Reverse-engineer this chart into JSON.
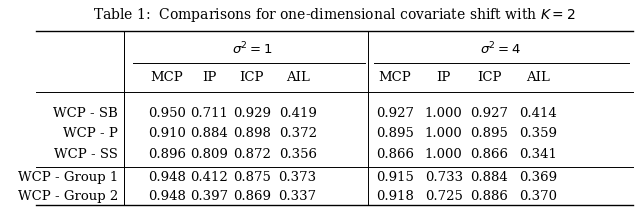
{
  "title": "Table 1:  Comparisons for one-dimensional covariate shift with $K = 2$",
  "sigma1_label": "$\\sigma^2 = 1$",
  "sigma4_label": "$\\sigma^2 = 4$",
  "col_headers": [
    "MCP",
    "IP",
    "ICP",
    "AIL",
    "MCP",
    "IP",
    "ICP",
    "AIL"
  ],
  "row_labels": [
    "WCP - SB",
    "WCP - P",
    "WCP - SS",
    "",
    "WCP - Group 1",
    "WCP - Group 2"
  ],
  "data": [
    [
      "0.950",
      "0.711",
      "0.929",
      "0.419",
      "0.927",
      "1.000",
      "0.927",
      "0.414"
    ],
    [
      "0.910",
      "0.884",
      "0.898",
      "0.372",
      "0.895",
      "1.000",
      "0.895",
      "0.359"
    ],
    [
      "0.896",
      "0.809",
      "0.872",
      "0.356",
      "0.866",
      "1.000",
      "0.866",
      "0.341"
    ],
    null,
    [
      "0.948",
      "0.412",
      "0.875",
      "0.373",
      "0.915",
      "0.733",
      "0.884",
      "0.369"
    ],
    [
      "0.948",
      "0.397",
      "0.869",
      "0.337",
      "0.918",
      "0.725",
      "0.886",
      "0.370"
    ]
  ],
  "bg_color": "#ffffff",
  "font_size": 9.5,
  "title_font_size": 10
}
